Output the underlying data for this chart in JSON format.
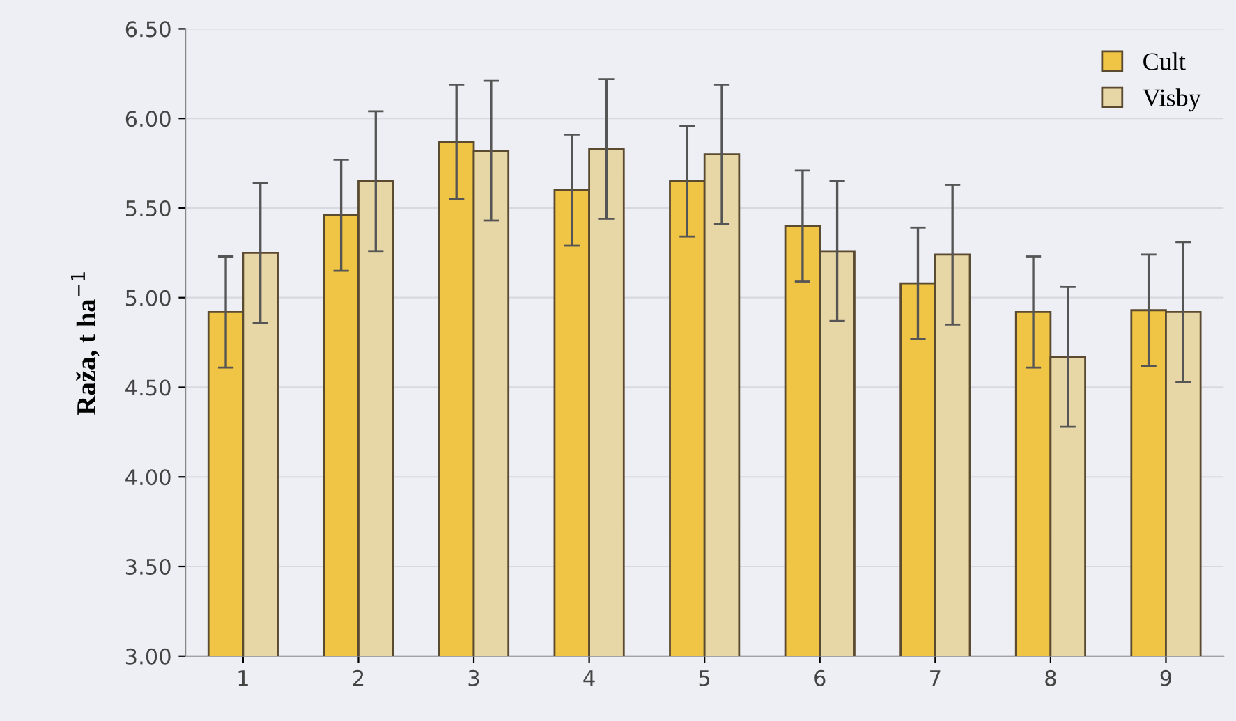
{
  "chart_data": {
    "type": "bar",
    "ylabel": "Raža, t ha$^{−1}$",
    "categories": [
      "1",
      "2",
      "3",
      "4",
      "5",
      "6",
      "7",
      "8",
      "9"
    ],
    "series": [
      {
        "name": "Cult",
        "color": "#f0c444",
        "values": [
          4.92,
          5.46,
          5.87,
          5.6,
          5.65,
          5.4,
          5.08,
          4.92,
          4.93
        ],
        "errors": [
          0.31,
          0.31,
          0.32,
          0.31,
          0.31,
          0.31,
          0.31,
          0.31,
          0.31
        ]
      },
      {
        "name": "Visby",
        "color": "#e8d7a6",
        "values": [
          5.25,
          5.65,
          5.82,
          5.83,
          5.8,
          5.26,
          5.24,
          4.67,
          4.92
        ],
        "errors": [
          0.39,
          0.39,
          0.39,
          0.39,
          0.39,
          0.39,
          0.39,
          0.39,
          0.39
        ]
      }
    ],
    "ylim": [
      3.0,
      6.5
    ],
    "yticks": [
      {
        "value": 3.0,
        "label": "3.00"
      },
      {
        "value": 3.5,
        "label": "3.50"
      },
      {
        "value": 4.0,
        "label": "4.00"
      },
      {
        "value": 4.5,
        "label": "4.50"
      },
      {
        "value": 5.0,
        "label": "5.00"
      },
      {
        "value": 5.5,
        "label": "5.50"
      },
      {
        "value": 6.0,
        "label": "6.00"
      },
      {
        "value": 6.5,
        "label": "6.50"
      }
    ],
    "grid": "y",
    "legend": "top right"
  }
}
